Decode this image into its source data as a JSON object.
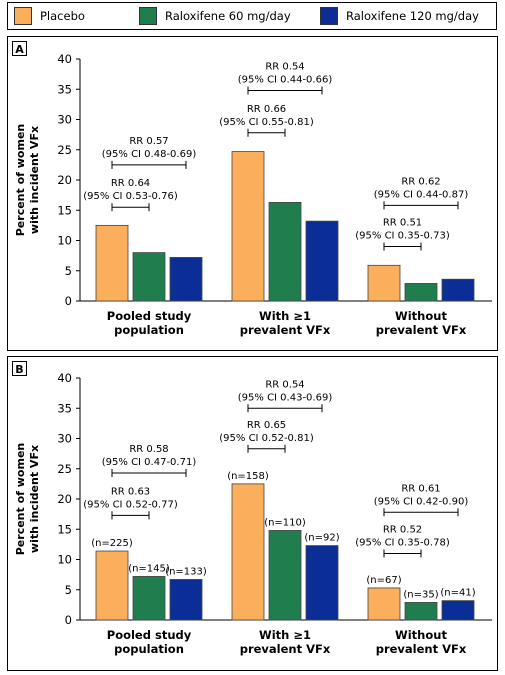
{
  "legend": {
    "items": [
      {
        "label": "Placebo",
        "color": "#FBAE5C"
      },
      {
        "label": "Raloxifene 60 mg/day",
        "color": "#1F7D4E"
      },
      {
        "label": "Raloxifene 120 mg/day",
        "color": "#0A2D96"
      }
    ]
  },
  "chart_data": [
    {
      "type": "bar",
      "panel_label": "A",
      "ylabel_line1": "Percent of women",
      "ylabel_line2": "with incident VFx",
      "ylim": [
        0,
        40
      ],
      "yticks": [
        0,
        5,
        10,
        15,
        20,
        25,
        30,
        35,
        40
      ],
      "categories": [
        {
          "line1": "Pooled study",
          "line2": "population"
        },
        {
          "line1": "With ≥1",
          "line2": "prevalent VFx"
        },
        {
          "line1": "Without",
          "line2": "prevalent VFx"
        }
      ],
      "series": [
        {
          "name": "Placebo",
          "values": [
            12.5,
            24.7,
            5.9
          ]
        },
        {
          "name": "Raloxifene 60 mg/day",
          "values": [
            8.0,
            16.3,
            2.9
          ]
        },
        {
          "name": "Raloxifene 120 mg/day",
          "values": [
            7.2,
            13.2,
            3.6
          ]
        }
      ],
      "n_labels": null,
      "annotations": [
        {
          "category": 0,
          "from": 0,
          "to": 1,
          "line1": "RR 0.64",
          "line2": "(95% CI 0.53-0.76)",
          "y": 15.5
        },
        {
          "category": 0,
          "from": 0,
          "to": 2,
          "line1": "RR 0.57",
          "line2": "(95% CI 0.48-0.69)",
          "y": 22.5
        },
        {
          "category": 1,
          "from": 0,
          "to": 1,
          "line1": "RR 0.66",
          "line2": "(95% CI 0.55-0.81)",
          "y": 27.8
        },
        {
          "category": 1,
          "from": 0,
          "to": 2,
          "line1": "RR 0.54",
          "line2": "(95% CI 0.44-0.66)",
          "y": 34.8
        },
        {
          "category": 2,
          "from": 0,
          "to": 1,
          "line1": "RR 0.51",
          "line2": "(95% CI 0.35-0.73)",
          "y": 9.0
        },
        {
          "category": 2,
          "from": 0,
          "to": 2,
          "line1": "RR 0.62",
          "line2": "(95% CI 0.44-0.87)",
          "y": 15.8
        }
      ]
    },
    {
      "type": "bar",
      "panel_label": "B",
      "ylabel_line1": "Percent of women",
      "ylabel_line2": "with incident VFx",
      "ylim": [
        0,
        40
      ],
      "yticks": [
        0,
        5,
        10,
        15,
        20,
        25,
        30,
        35,
        40
      ],
      "categories": [
        {
          "line1": "Pooled study",
          "line2": "population"
        },
        {
          "line1": "With ≥1",
          "line2": "prevalent VFx"
        },
        {
          "line1": "Without",
          "line2": "prevalent VFx"
        }
      ],
      "series": [
        {
          "name": "Placebo",
          "values": [
            11.4,
            22.5,
            5.3
          ]
        },
        {
          "name": "Raloxifene 60 mg/day",
          "values": [
            7.2,
            14.8,
            2.9
          ]
        },
        {
          "name": "Raloxifene 120 mg/day",
          "values": [
            6.7,
            12.3,
            3.2
          ]
        }
      ],
      "n_labels": [
        [
          "(n=225)",
          "(n=145)",
          "(n=133)"
        ],
        [
          "(n=158)",
          "(n=110)",
          "(n=92)"
        ],
        [
          "(n=67)",
          "(n=35)",
          "(n=41)"
        ]
      ],
      "annotations": [
        {
          "category": 0,
          "from": 0,
          "to": 1,
          "line1": "RR 0.63",
          "line2": "(95% CI 0.52-0.77)",
          "y": 17.3
        },
        {
          "category": 0,
          "from": 0,
          "to": 2,
          "line1": "RR 0.58",
          "line2": "(95% CI 0.47-0.71)",
          "y": 24.3
        },
        {
          "category": 1,
          "from": 0,
          "to": 1,
          "line1": "RR 0.65",
          "line2": "(95% CI 0.52-0.81)",
          "y": 28.3
        },
        {
          "category": 1,
          "from": 0,
          "to": 2,
          "line1": "RR 0.54",
          "line2": "(95% CI 0.43-0.69)",
          "y": 35.0
        },
        {
          "category": 2,
          "from": 0,
          "to": 1,
          "line1": "RR 0.52",
          "line2": "(95% CI 0.35-0.78)",
          "y": 11.0
        },
        {
          "category": 2,
          "from": 0,
          "to": 2,
          "line1": "RR 0.61",
          "line2": "(95% CI 0.42-0.90)",
          "y": 17.8
        }
      ]
    }
  ]
}
